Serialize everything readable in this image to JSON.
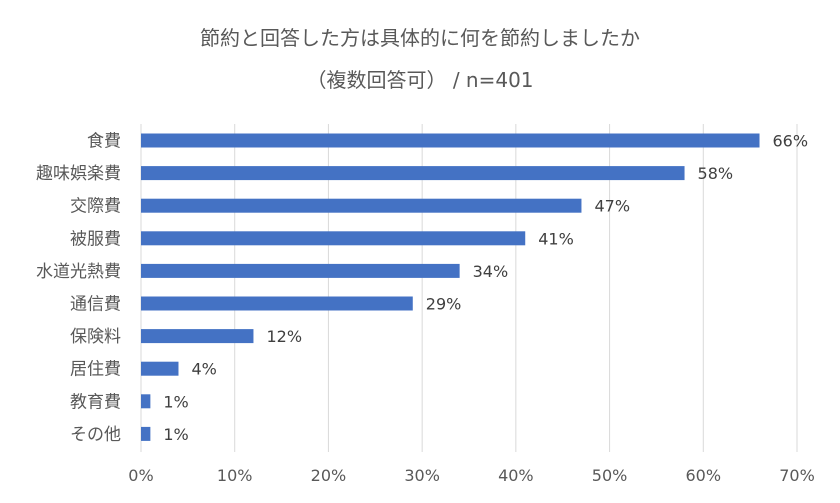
{
  "chart_data": {
    "type": "bar",
    "orientation": "horizontal",
    "title": "節約と回答した方は具体的に何を節約しましたか",
    "subtitle": "（複数回答可） / n=401",
    "categories": [
      "食費",
      "趣味娯楽費",
      "交際費",
      "被服費",
      "水道光熱費",
      "通信費",
      "保険料",
      "居住費",
      "教育費",
      "その他"
    ],
    "values": [
      66,
      58,
      47,
      41,
      34,
      29,
      12,
      4,
      1,
      1
    ],
    "data_labels": [
      "66%",
      "58%",
      "47%",
      "41%",
      "34%",
      "29%",
      "12%",
      "4%",
      "1%",
      "1%"
    ],
    "xlim": [
      0,
      70
    ],
    "xticks": [
      0,
      10,
      20,
      30,
      40,
      50,
      60,
      70
    ],
    "xtick_labels": [
      "0%",
      "10%",
      "20%",
      "30%",
      "40%",
      "50%",
      "60%",
      "70%"
    ],
    "grid": "vertical",
    "bar_color": "#4472C4",
    "grid_color": "#D9D9D9",
    "text_color": "#595959"
  }
}
